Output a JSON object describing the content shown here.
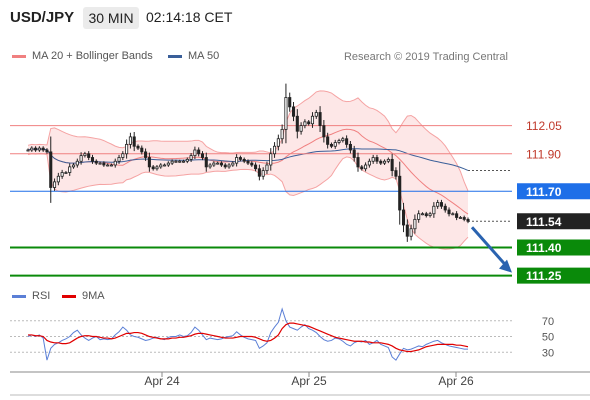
{
  "header": {
    "symbol": "USD/JPY",
    "interval": "30 MIN",
    "time": "02:14:18 CET"
  },
  "legend": {
    "bollinger_label": "MA 20 + Bollinger Bands",
    "ma50_label": "MA 50",
    "bollinger_color": "#f08080",
    "ma50_color": "#3a5f99"
  },
  "copyright": "Research © 2019 Trading Central",
  "rsi_legend": {
    "rsi_label": "RSI",
    "ma9_label": "9MA",
    "rsi_color": "#5b7fd6",
    "ma9_color": "#e00000"
  },
  "colors": {
    "resistance": "#f08080",
    "pivot": "#1e6fe8",
    "support": "#0a8a0a",
    "last_price": "#222222",
    "candle": "#222222"
  },
  "chart_data": [
    {
      "type": "candlestick",
      "x_ticks": [
        "Apr 24",
        "Apr 25",
        "Apr 26"
      ],
      "ylim": [
        111.2,
        112.32
      ],
      "levels": [
        {
          "label": "112.05",
          "value": 112.05,
          "kind": "resistance"
        },
        {
          "label": "111.90",
          "value": 111.9,
          "kind": "resistance"
        },
        {
          "label": "111.70",
          "value": 111.7,
          "kind": "pivot"
        },
        {
          "label": "111.54",
          "value": 111.54,
          "kind": "last"
        },
        {
          "label": "111.40",
          "value": 111.4,
          "kind": "support"
        },
        {
          "label": "111.25",
          "value": 111.25,
          "kind": "support"
        }
      ],
      "close": [
        111.92,
        111.93,
        111.92,
        111.93,
        111.92,
        111.91,
        111.72,
        111.75,
        111.78,
        111.8,
        111.8,
        111.83,
        111.84,
        111.86,
        111.89,
        111.9,
        111.88,
        111.86,
        111.85,
        111.85,
        111.84,
        111.84,
        111.84,
        111.86,
        111.88,
        111.9,
        111.95,
        111.99,
        111.94,
        111.93,
        111.91,
        111.88,
        111.83,
        111.82,
        111.83,
        111.84,
        111.84,
        111.85,
        111.86,
        111.86,
        111.86,
        111.86,
        111.87,
        111.89,
        111.92,
        111.9,
        111.88,
        111.83,
        111.84,
        111.85,
        111.85,
        111.84,
        111.83,
        111.84,
        111.85,
        111.88,
        111.87,
        111.86,
        111.85,
        111.84,
        111.82,
        111.78,
        111.81,
        111.84,
        111.9,
        111.94,
        111.98,
        112.03,
        112.2,
        112.15,
        112.1,
        112.02,
        112.05,
        112.07,
        112.06,
        112.1,
        112.12,
        112.05,
        111.99,
        111.95,
        111.94,
        111.96,
        111.97,
        111.98,
        111.95,
        111.92,
        111.88,
        111.83,
        111.82,
        111.84,
        111.86,
        111.88,
        111.86,
        111.85,
        111.86,
        111.87,
        111.81,
        111.78,
        111.6,
        111.52,
        111.46,
        111.5,
        111.55,
        111.58,
        111.58,
        111.57,
        111.58,
        111.62,
        111.64,
        111.62,
        111.6,
        111.58,
        111.58,
        111.56,
        111.56,
        111.55,
        111.54
      ],
      "rsi": {
        "ylim": [
          10,
          90
        ],
        "y_ticks": [
          30,
          50,
          70
        ],
        "rsi_values": [
          50,
          52,
          50,
          52,
          48,
          20,
          35,
          40,
          42,
          45,
          47,
          50,
          55,
          58,
          52,
          48,
          45,
          48,
          50,
          46,
          47,
          46,
          47,
          52,
          56,
          62,
          58,
          52,
          50,
          49,
          47,
          45,
          46,
          48,
          49,
          47,
          46,
          49,
          50,
          50,
          52,
          50,
          51,
          55,
          62,
          58,
          52,
          46,
          48,
          47,
          46,
          47,
          49,
          50,
          51,
          56,
          52,
          49,
          47,
          46,
          45,
          35,
          38,
          42,
          55,
          62,
          68,
          85,
          70,
          62,
          60,
          58,
          62,
          65,
          60,
          58,
          55,
          50,
          46,
          44,
          45,
          48,
          47,
          44,
          40,
          38,
          42,
          44,
          43,
          45,
          40,
          42,
          45,
          40,
          38,
          36,
          24,
          20,
          28,
          35,
          33,
          34,
          36,
          38,
          37,
          40,
          42,
          44,
          45,
          42,
          40,
          38,
          37,
          36,
          35,
          34,
          34
        ],
        "ma9_values": [
          52,
          52,
          51,
          51,
          50,
          45,
          43,
          42,
          42,
          41,
          41,
          42,
          45,
          48,
          50,
          51,
          51,
          50,
          50,
          49,
          48,
          48,
          47,
          48,
          50,
          52,
          54,
          54,
          55,
          55,
          54,
          52,
          50,
          49,
          48,
          47,
          47,
          47,
          48,
          48,
          49,
          49,
          50,
          51,
          53,
          54,
          54,
          53,
          52,
          51,
          50,
          49,
          48,
          48,
          48,
          49,
          50,
          50,
          50,
          50,
          49,
          47,
          45,
          44,
          45,
          48,
          52,
          60,
          65,
          67,
          67,
          66,
          65,
          64,
          63,
          61,
          59,
          57,
          55,
          53,
          51,
          49,
          48,
          47,
          46,
          45,
          44,
          44,
          44,
          43,
          43,
          42,
          42,
          42,
          41,
          40,
          38,
          35,
          33,
          32,
          31,
          31,
          32,
          33,
          35,
          37,
          38,
          39,
          40,
          40,
          40,
          40,
          40,
          39,
          39,
          38,
          37
        ]
      }
    }
  ]
}
